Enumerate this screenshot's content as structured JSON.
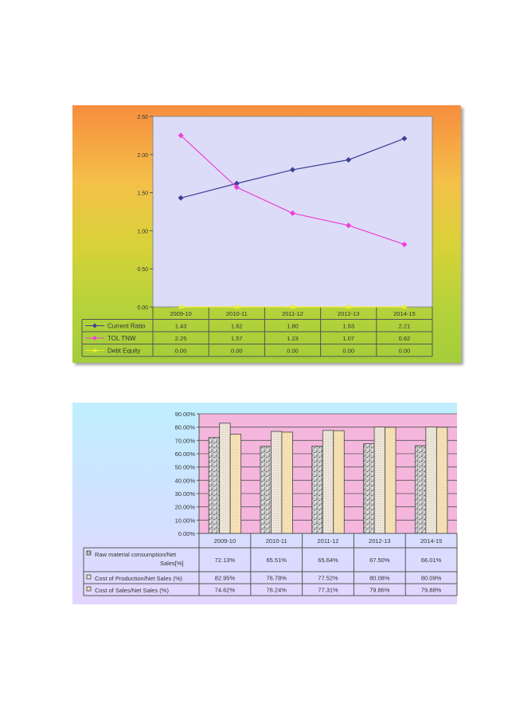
{
  "chart_data": [
    {
      "type": "line",
      "categories": [
        "2009-10",
        "2010-11",
        "2011-12",
        "2012-13",
        "2014-15"
      ],
      "ylim": [
        0,
        2.5
      ],
      "yticks": [
        "2.50",
        "2.00",
        "1.50",
        "1.00",
        "0.50",
        "0.00"
      ],
      "grid": false,
      "legend": "data-table-left",
      "series": [
        {
          "name": "Current Ratio",
          "color": "#3f3f9a",
          "marker": "diamond",
          "values": [
            1.43,
            1.62,
            1.8,
            1.93,
            2.21
          ],
          "labels": [
            "1.43",
            "1.62",
            "1.80",
            "1.93",
            "2.21"
          ]
        },
        {
          "name": "TOL TNW",
          "color": "#ee3fd8",
          "marker": "diamond",
          "values": [
            2.25,
            1.57,
            1.23,
            1.07,
            0.82
          ],
          "labels": [
            "2.25",
            "1.57",
            "1.23",
            "1.07",
            "0.82"
          ]
        },
        {
          "name": "Debt Equity",
          "color": "#eded2c",
          "marker": "triangle",
          "values": [
            0.0,
            0.0,
            0.0,
            0.0,
            0.0
          ],
          "labels": [
            "0.00",
            "0.00",
            "0.00",
            "0.00",
            "0.00"
          ]
        }
      ]
    },
    {
      "type": "bar",
      "categories": [
        "2009-10",
        "2010-11",
        "2011-12",
        "2012-13",
        "2014-15"
      ],
      "ylim": [
        0,
        90
      ],
      "yticks": [
        "90.00%",
        "80.00%",
        "70.00%",
        "60.00%",
        "50.00%",
        "40.00%",
        "30.00%",
        "20.00%",
        "10.00%",
        "0.00%"
      ],
      "grid": true,
      "legend": "data-table-left",
      "series": [
        {
          "name": "Raw material consumption/Net Sales[%]",
          "color": "#b8b8b8",
          "pattern": "granite",
          "values": [
            72.13,
            65.51,
            65.64,
            67.5,
            66.01
          ],
          "labels": [
            "72.13%",
            "65.51%",
            "65.64%",
            "67.50%",
            "66.01%"
          ]
        },
        {
          "name": "Cost of Production/Net Sales (%)",
          "color": "#ece4d6",
          "pattern": "fine",
          "values": [
            82.95,
            76.78,
            77.52,
            80.08,
            80.09
          ],
          "labels": [
            "82.95%",
            "76.78%",
            "77.52%",
            "80.08%",
            "80.09%"
          ]
        },
        {
          "name": "Cost of Sales/Net Sales (%)",
          "color": "#f3ddb0",
          "pattern": "plain",
          "values": [
            74.62,
            76.24,
            77.31,
            79.86,
            79.88
          ],
          "labels": [
            "74.62%",
            "76.24%",
            "77.31%",
            "79.86%",
            "79.88%"
          ]
        }
      ]
    }
  ]
}
